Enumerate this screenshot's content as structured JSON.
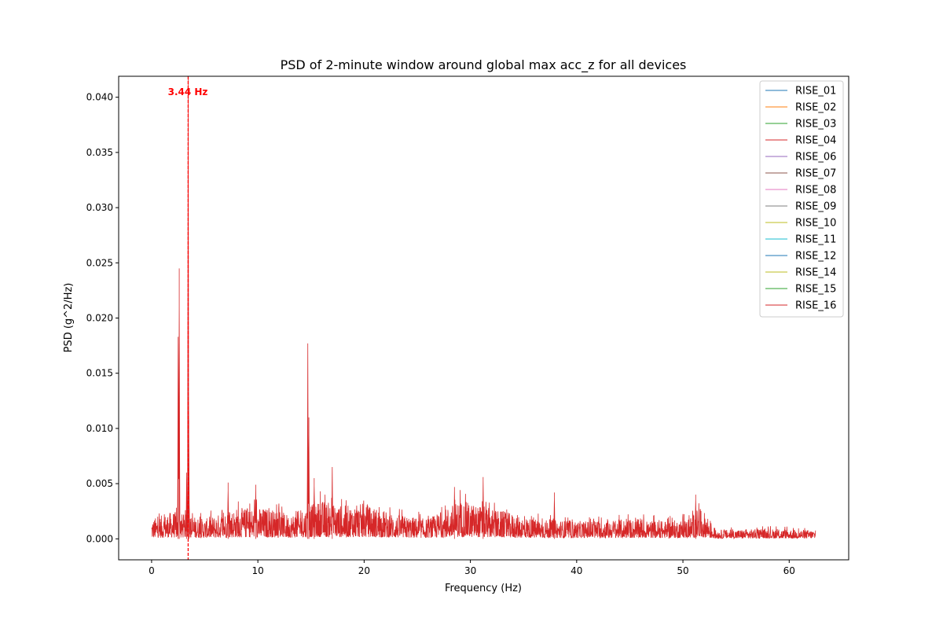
{
  "chart_data": {
    "type": "line",
    "title": "PSD of 2-minute window around global max acc_z for all devices",
    "xlabel": "Frequency (Hz)",
    "ylabel": "PSD (g^2/Hz)",
    "xlim": [
      -3.1,
      65.6
    ],
    "ylim": [
      -0.0019,
      0.0419
    ],
    "xticks": [
      0,
      10,
      20,
      30,
      40,
      50,
      60
    ],
    "xtick_labels": [
      "0",
      "10",
      "20",
      "30",
      "40",
      "50",
      "60"
    ],
    "yticks": [
      0.0,
      0.005,
      0.01,
      0.015,
      0.02,
      0.025,
      0.03,
      0.035,
      0.04
    ],
    "ytick_labels": [
      "0.000",
      "0.005",
      "0.010",
      "0.015",
      "0.020",
      "0.025",
      "0.030",
      "0.035",
      "0.040"
    ],
    "grid": false,
    "legend_position": "top-right",
    "series": [
      {
        "name": "RISE_01",
        "color": "#1f77b4"
      },
      {
        "name": "RISE_02",
        "color": "#ff7f0e"
      },
      {
        "name": "RISE_03",
        "color": "#2ca02c"
      },
      {
        "name": "RISE_04",
        "color": "#d62728"
      },
      {
        "name": "RISE_06",
        "color": "#9467bd"
      },
      {
        "name": "RISE_07",
        "color": "#8c564b"
      },
      {
        "name": "RISE_08",
        "color": "#e377c2"
      },
      {
        "name": "RISE_09",
        "color": "#7f7f7f"
      },
      {
        "name": "RISE_10",
        "color": "#bcbd22"
      },
      {
        "name": "RISE_11",
        "color": "#17becf"
      },
      {
        "name": "RISE_12",
        "color": "#1f77b4"
      },
      {
        "name": "RISE_14",
        "color": "#bcbd22"
      },
      {
        "name": "RISE_15",
        "color": "#2ca02c"
      },
      {
        "name": "RISE_16",
        "color": "#d62728"
      }
    ],
    "frequency_range": [
      0,
      62.5
    ],
    "peaks": [
      {
        "x": 2.5,
        "y": 0.0183
      },
      {
        "x": 2.6,
        "y": 0.0245
      },
      {
        "x": 3.3,
        "y": 0.006
      },
      {
        "x": 3.44,
        "y": 0.0419
      },
      {
        "x": 3.5,
        "y": 0.0108
      },
      {
        "x": 7.2,
        "y": 0.0051
      },
      {
        "x": 9.8,
        "y": 0.0049
      },
      {
        "x": 14.7,
        "y": 0.0177
      },
      {
        "x": 14.8,
        "y": 0.011
      },
      {
        "x": 15.3,
        "y": 0.0055
      },
      {
        "x": 17.0,
        "y": 0.0065
      },
      {
        "x": 28.5,
        "y": 0.0047
      },
      {
        "x": 31.2,
        "y": 0.0056
      },
      {
        "x": 37.9,
        "y": 0.0042
      },
      {
        "x": 51.2,
        "y": 0.004
      }
    ],
    "noise_envelope": [
      {
        "x": 0,
        "y": 0.0018
      },
      {
        "x": 2,
        "y": 0.0025
      },
      {
        "x": 5,
        "y": 0.0018
      },
      {
        "x": 8,
        "y": 0.0028
      },
      {
        "x": 11,
        "y": 0.0028
      },
      {
        "x": 13,
        "y": 0.0022
      },
      {
        "x": 16,
        "y": 0.0035
      },
      {
        "x": 18,
        "y": 0.003
      },
      {
        "x": 20,
        "y": 0.0032
      },
      {
        "x": 23,
        "y": 0.0022
      },
      {
        "x": 26,
        "y": 0.0018
      },
      {
        "x": 29,
        "y": 0.0035
      },
      {
        "x": 33,
        "y": 0.0025
      },
      {
        "x": 36,
        "y": 0.0018
      },
      {
        "x": 40,
        "y": 0.0016
      },
      {
        "x": 45,
        "y": 0.0018
      },
      {
        "x": 48,
        "y": 0.0016
      },
      {
        "x": 50.5,
        "y": 0.0018
      },
      {
        "x": 51.5,
        "y": 0.0028
      },
      {
        "x": 52.3,
        "y": 0.0022
      },
      {
        "x": 53,
        "y": 0.0008
      },
      {
        "x": 58,
        "y": 0.0009
      },
      {
        "x": 62.5,
        "y": 0.0008
      }
    ],
    "annotation": {
      "x": 3.44,
      "label": "3.44 Hz",
      "color": "#ff0000"
    }
  }
}
